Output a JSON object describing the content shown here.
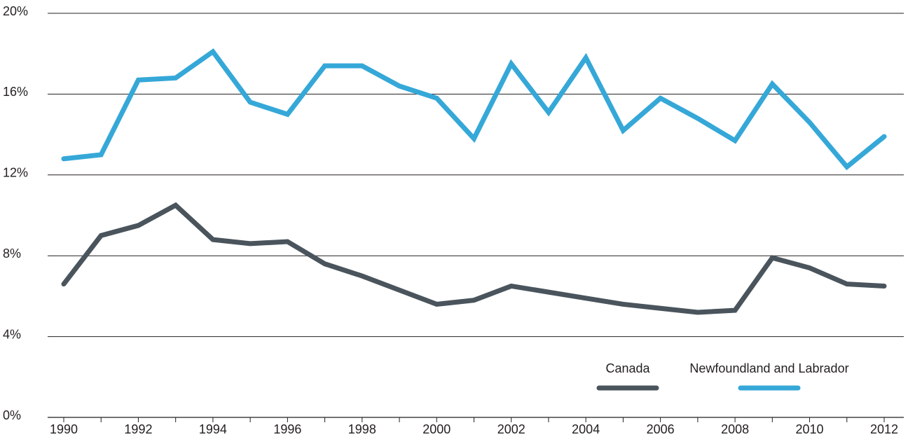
{
  "chart_data": {
    "type": "line",
    "x": [
      1990,
      1991,
      1992,
      1993,
      1994,
      1995,
      1996,
      1997,
      1998,
      1999,
      2000,
      2001,
      2002,
      2003,
      2004,
      2005,
      2006,
      2007,
      2008,
      2009,
      2010,
      2011,
      2012
    ],
    "series": [
      {
        "name": "Canada",
        "color": "#4a545c",
        "values": [
          6.6,
          9.0,
          9.5,
          10.5,
          8.8,
          8.6,
          8.7,
          7.6,
          7.0,
          6.3,
          5.6,
          5.8,
          6.5,
          6.2,
          5.9,
          5.6,
          5.4,
          5.2,
          5.3,
          7.9,
          7.4,
          6.6,
          6.5
        ]
      },
      {
        "name": "Newfoundland and Labrador",
        "color": "#35a8d8",
        "values": [
          12.8,
          13.0,
          16.7,
          16.8,
          18.1,
          15.6,
          15.0,
          17.4,
          17.4,
          16.4,
          15.8,
          13.8,
          17.5,
          15.1,
          17.8,
          14.2,
          15.8,
          14.8,
          13.7,
          16.5,
          14.6,
          12.4,
          13.9
        ]
      }
    ],
    "xlim": [
      1990,
      2012
    ],
    "xticks": [
      1990,
      1992,
      1994,
      1996,
      1998,
      2000,
      2002,
      2004,
      2006,
      2008,
      2010,
      2012
    ],
    "ylim": [
      0,
      20
    ],
    "yticks": [
      {
        "value": 0,
        "label": "0%"
      },
      {
        "value": 4,
        "label": "4%"
      },
      {
        "value": 8,
        "label": "8%"
      },
      {
        "value": 12,
        "label": "12%"
      },
      {
        "value": 16,
        "label": "16%"
      },
      {
        "value": 20,
        "label": "20%"
      }
    ],
    "grid": true,
    "legend": "lower right"
  }
}
